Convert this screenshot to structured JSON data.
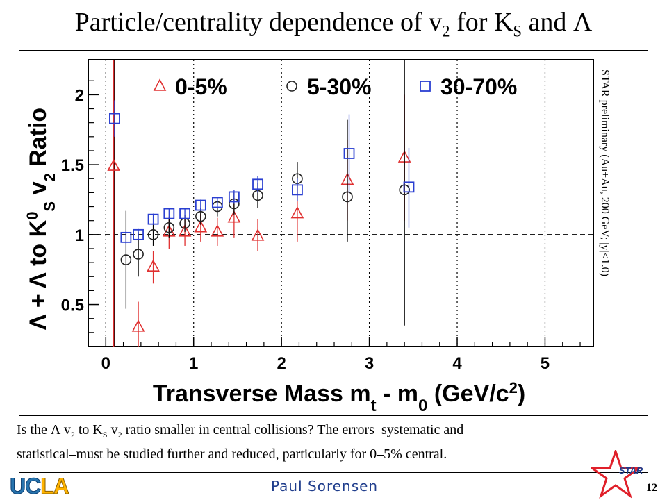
{
  "slide": {
    "title_main": "Particle/centrality dependence of v",
    "title_sub1": "2",
    "title_mid": " for K",
    "title_sub2": "S",
    "title_end": " and Λ",
    "caption_line1_a": "Is the Λ v",
    "caption_line1_sub1": "2",
    "caption_line1_b": " to K",
    "caption_line1_sub2": "S",
    "caption_line1_c": " v",
    "caption_line1_sub3": "2",
    "caption_line1_d": " ratio smaller in central collisions? The errors–systematic and",
    "caption_line2": "statistical–must be studied further and reduced, particularly for 0–5% central.",
    "presenter": "Paul Sorensen",
    "page_number": "12",
    "logo_text_uc": "UC",
    "logo_text_la": "LA",
    "star_logo_text": "STAR",
    "colors": {
      "uc_blue": "#2774ae",
      "la_gold": "#ffb300",
      "presenter": "#1f3d8c",
      "star_red": "#e0202a"
    }
  },
  "chart_data": {
    "type": "scatter",
    "xlabel": "Transverse Mass m",
    "xlabel_sub": "t",
    "xlabel_rest": " - m",
    "xlabel_sub2": "0",
    "xlabel_unit": " (GeV/c",
    "xlabel_sup": "2",
    "xlabel_end": ")",
    "ylabel": "Λ + Λ to K",
    "ylabel_sup": "0",
    "ylabel_sub": "S",
    "ylabel_v": " v",
    "ylabel_sub2": "2",
    "ylabel_end": " Ratio",
    "xlim": [
      -0.2,
      5.55
    ],
    "ylim": [
      0.2,
      2.25
    ],
    "xticks": [
      0,
      1,
      2,
      3,
      4,
      5
    ],
    "yticks": [
      0.5,
      1,
      1.5,
      2
    ],
    "xtick_labels": [
      "0",
      "1",
      "2",
      "3",
      "4",
      "5"
    ],
    "ytick_labels": [
      "0.5",
      "1",
      "1.5",
      "2"
    ],
    "reference_line_y": 1,
    "vertical_lines_x": [
      0.1
    ],
    "annotation": "STAR preliminary (Au+Au, 200 GeV; |y|<1.0)",
    "legend_position": "top",
    "series": [
      {
        "name": "0-5%",
        "marker": "triangle",
        "color": "#e03030",
        "points": [
          {
            "x": 0.09,
            "y": 1.49,
            "lo": 0.2,
            "hi": 2.25
          },
          {
            "x": 0.37,
            "y": 0.34,
            "lo": 0.2,
            "hi": 0.52
          },
          {
            "x": 0.54,
            "y": 0.77,
            "lo": 0.65,
            "hi": 0.88
          },
          {
            "x": 0.72,
            "y": 1.02,
            "lo": 0.9,
            "hi": 1.13
          },
          {
            "x": 0.9,
            "y": 1.02,
            "lo": 0.92,
            "hi": 1.12
          },
          {
            "x": 1.08,
            "y": 1.05,
            "lo": 0.95,
            "hi": 1.15
          },
          {
            "x": 1.27,
            "y": 1.02,
            "lo": 0.92,
            "hi": 1.12
          },
          {
            "x": 1.46,
            "y": 1.12,
            "lo": 0.98,
            "hi": 1.26
          },
          {
            "x": 1.73,
            "y": 0.99,
            "lo": 0.88,
            "hi": 1.11
          },
          {
            "x": 2.18,
            "y": 1.15,
            "lo": 0.95,
            "hi": 1.35
          },
          {
            "x": 2.75,
            "y": 1.39,
            "lo": 1.1,
            "hi": 1.68
          },
          {
            "x": 3.4,
            "y": 1.55,
            "lo": 1.1,
            "hi": 2.0
          }
        ]
      },
      {
        "name": "5-30%",
        "marker": "circle",
        "color": "#222222",
        "points": [
          {
            "x": 0.23,
            "y": 0.82,
            "lo": 0.47,
            "hi": 1.17
          },
          {
            "x": 0.37,
            "y": 0.86,
            "lo": 0.7,
            "hi": 1.02
          },
          {
            "x": 0.54,
            "y": 1.0,
            "lo": 0.92,
            "hi": 1.08
          },
          {
            "x": 0.72,
            "y": 1.05,
            "lo": 0.98,
            "hi": 1.12
          },
          {
            "x": 0.9,
            "y": 1.08,
            "lo": 1.02,
            "hi": 1.14
          },
          {
            "x": 1.08,
            "y": 1.13,
            "lo": 1.07,
            "hi": 1.19
          },
          {
            "x": 1.27,
            "y": 1.2,
            "lo": 1.13,
            "hi": 1.27
          },
          {
            "x": 1.46,
            "y": 1.22,
            "lo": 1.14,
            "hi": 1.3
          },
          {
            "x": 1.73,
            "y": 1.28,
            "lo": 1.19,
            "hi": 1.37
          },
          {
            "x": 2.18,
            "y": 1.4,
            "lo": 1.28,
            "hi": 1.52
          },
          {
            "x": 2.75,
            "y": 1.27,
            "lo": 0.95,
            "hi": 1.82
          },
          {
            "x": 3.4,
            "y": 1.32,
            "lo": 0.35,
            "hi": 2.3
          }
        ]
      },
      {
        "name": "30-70%",
        "marker": "square",
        "color": "#2a3fd1",
        "points": [
          {
            "x": 0.1,
            "y": 1.83,
            "lo": 1.7,
            "hi": 1.96
          },
          {
            "x": 0.23,
            "y": 0.98,
            "lo": 0.93,
            "hi": 1.03
          },
          {
            "x": 0.37,
            "y": 1.0,
            "lo": 0.96,
            "hi": 1.04
          },
          {
            "x": 0.54,
            "y": 1.11,
            "lo": 1.07,
            "hi": 1.15
          },
          {
            "x": 0.72,
            "y": 1.15,
            "lo": 1.11,
            "hi": 1.19
          },
          {
            "x": 0.9,
            "y": 1.15,
            "lo": 1.11,
            "hi": 1.19
          },
          {
            "x": 1.08,
            "y": 1.21,
            "lo": 1.17,
            "hi": 1.25
          },
          {
            "x": 1.27,
            "y": 1.23,
            "lo": 1.19,
            "hi": 1.27
          },
          {
            "x": 1.46,
            "y": 1.27,
            "lo": 1.22,
            "hi": 1.32
          },
          {
            "x": 1.73,
            "y": 1.36,
            "lo": 1.3,
            "hi": 1.42
          },
          {
            "x": 2.18,
            "y": 1.32,
            "lo": 1.24,
            "hi": 1.4
          },
          {
            "x": 2.77,
            "y": 1.58,
            "lo": 1.3,
            "hi": 1.86
          },
          {
            "x": 3.45,
            "y": 1.34,
            "lo": 1.05,
            "hi": 1.62
          }
        ]
      }
    ]
  }
}
